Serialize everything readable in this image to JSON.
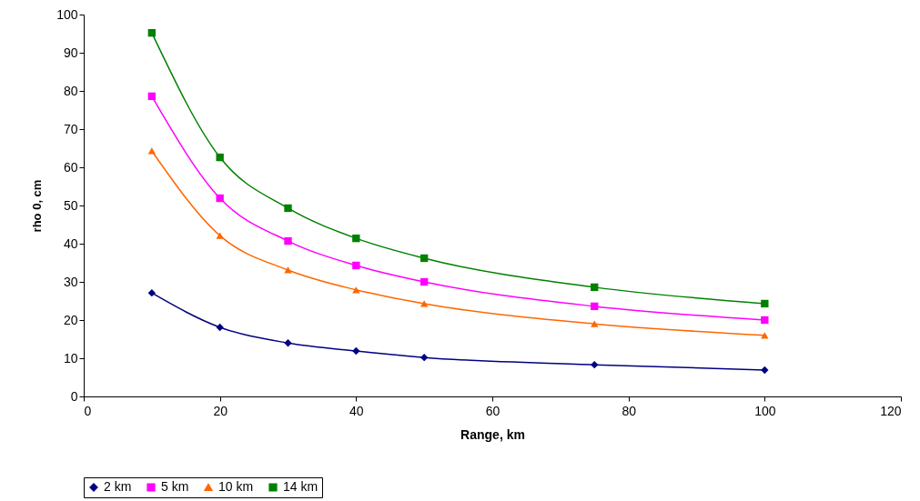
{
  "chart_data": {
    "type": "line",
    "xlabel": "Range, km",
    "ylabel": "rho 0, cm",
    "x": [
      10,
      20,
      30,
      40,
      50,
      75,
      100
    ],
    "series": [
      {
        "name": "2 km",
        "color": "#000080",
        "marker": "diamond",
        "values": [
          27.1,
          18.1,
          14,
          11.9,
          10.2,
          8.3,
          6.9
        ]
      },
      {
        "name": "5 km",
        "color": "#ff00ff",
        "marker": "square",
        "values": [
          78.6,
          51.9,
          40.7,
          34.3,
          30,
          23.6,
          20
        ]
      },
      {
        "name": "10 km",
        "color": "#ff6600",
        "marker": "triangle",
        "values": [
          64.3,
          42.1,
          33.1,
          27.9,
          24.3,
          19,
          16
        ]
      },
      {
        "name": "14 km",
        "color": "#008000",
        "marker": "square",
        "values": [
          95.2,
          62.6,
          49.3,
          41.4,
          36.2,
          28.6,
          24.3
        ]
      }
    ],
    "xlim": [
      0,
      120
    ],
    "xticks": [
      0,
      20,
      40,
      60,
      80,
      100,
      120
    ],
    "ylim": [
      0,
      100
    ],
    "yticks": [
      0,
      10,
      20,
      30,
      40,
      50,
      60,
      70,
      80,
      90,
      100
    ],
    "grid": false,
    "legend": "bottom",
    "line_style": "solid"
  }
}
